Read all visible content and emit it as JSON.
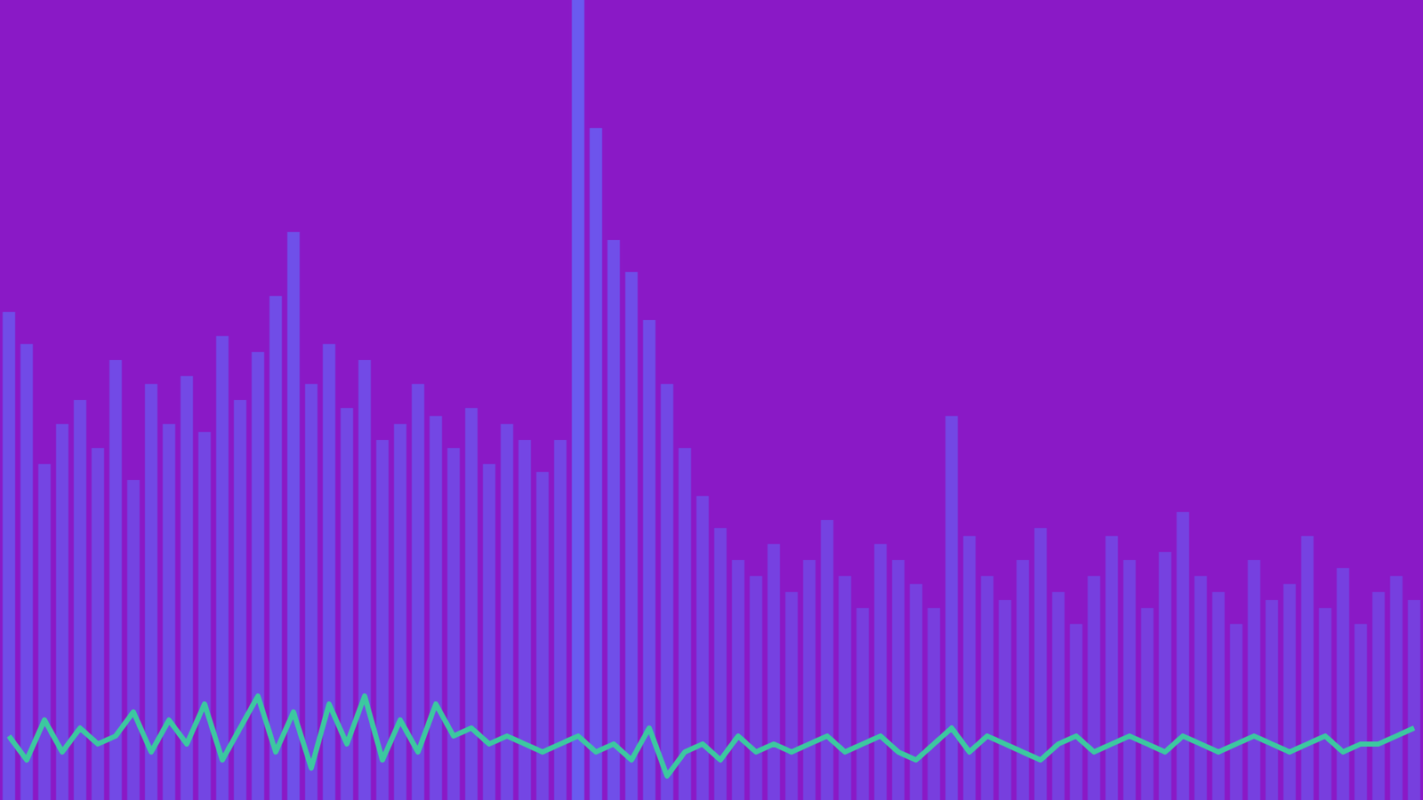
{
  "chart_data": {
    "type": "bar",
    "categories": [
      null,
      null,
      null,
      null,
      null,
      null,
      null,
      null,
      null,
      null,
      null,
      null,
      null,
      null,
      null,
      null,
      null,
      null,
      null,
      null,
      null,
      null,
      null,
      null,
      null,
      null,
      null,
      null,
      null,
      null,
      null,
      null,
      null,
      null,
      null,
      null,
      null,
      null,
      null,
      null,
      null,
      null,
      null,
      null,
      null,
      null,
      null,
      null,
      null,
      null,
      null,
      null,
      null,
      null,
      null,
      null,
      null,
      null,
      null,
      null,
      null,
      null,
      null,
      null,
      null,
      null,
      null,
      null,
      null,
      null,
      null,
      null,
      null,
      null,
      null,
      null,
      null,
      null,
      null,
      null
    ],
    "series": [
      {
        "type": "bar",
        "color": "#6a5af0",
        "values": [
          61,
          57,
          42,
          47,
          50,
          44,
          55,
          40,
          52,
          47,
          53,
          46,
          58,
          50,
          56,
          63,
          71,
          52,
          57,
          49,
          55,
          45,
          47,
          52,
          48,
          44,
          49,
          42,
          47,
          45,
          41,
          45,
          100,
          84,
          70,
          66,
          60,
          52,
          44,
          38,
          34,
          30,
          28,
          32,
          26,
          30,
          35,
          28,
          24,
          32,
          30,
          27,
          24,
          48,
          33,
          28,
          25,
          30,
          34,
          26,
          22,
          28,
          33,
          30,
          24,
          31,
          36,
          28,
          26,
          22,
          30,
          25,
          27,
          33,
          24,
          29,
          22,
          26,
          28,
          25
        ]
      },
      {
        "type": "line",
        "color": "#3cc8a0",
        "values": [
          8,
          5,
          10,
          6,
          9,
          7,
          8,
          11,
          6,
          10,
          7,
          12,
          5,
          9,
          13,
          6,
          11,
          4,
          12,
          7,
          13,
          5,
          10,
          6,
          12,
          8,
          9,
          7,
          8,
          7,
          6,
          7,
          8,
          6,
          7,
          5,
          9,
          3,
          6,
          7,
          5,
          8,
          6,
          7,
          6,
          7,
          8,
          6,
          7,
          8,
          6,
          5,
          7,
          9,
          6,
          8,
          7,
          6,
          5,
          7,
          8,
          6,
          7,
          8,
          7,
          6,
          8,
          7,
          6,
          7,
          8,
          7,
          6,
          7,
          8,
          6,
          7,
          7,
          8,
          9
        ]
      }
    ],
    "ylim": [
      0,
      100
    ],
    "grid": false,
    "tick_labels": false
  }
}
